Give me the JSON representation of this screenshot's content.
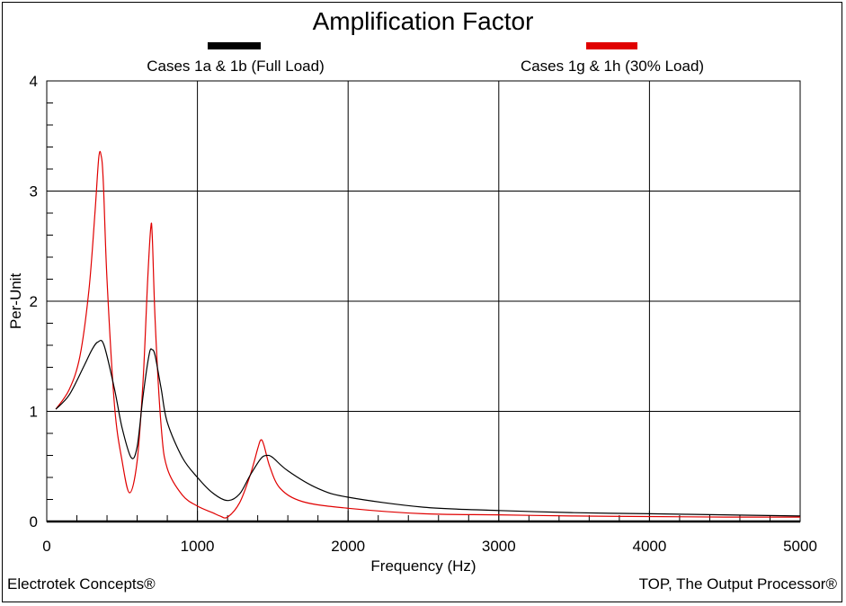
{
  "chart_data": {
    "type": "line",
    "title": "Amplification Factor",
    "xlabel": "Frequency (Hz)",
    "ylabel": "Per-Unit",
    "xlim": [
      0,
      5000
    ],
    "ylim": [
      0,
      4
    ],
    "x_ticks": [
      "0",
      "1000",
      "2000",
      "3000",
      "4000",
      "5000"
    ],
    "y_ticks": [
      "0",
      "1",
      "2",
      "3",
      "4"
    ],
    "grid": true,
    "legend_position": "top",
    "series": [
      {
        "name": "Cases 1a & 1b (Full Load)",
        "color": "#000000",
        "x": [
          60,
          150,
          250,
          300,
          340,
          380,
          450,
          500,
          560,
          600,
          640,
          680,
          700,
          720,
          760,
          800,
          900,
          1000,
          1100,
          1200,
          1280,
          1350,
          1420,
          1460,
          1500,
          1600,
          1800,
          2000,
          2500,
          3000,
          3500,
          4000,
          4500,
          5000
        ],
        "y": [
          1.02,
          1.15,
          1.42,
          1.56,
          1.63,
          1.6,
          1.2,
          0.85,
          0.58,
          0.68,
          1.15,
          1.52,
          1.56,
          1.5,
          1.2,
          0.9,
          0.58,
          0.4,
          0.26,
          0.19,
          0.25,
          0.42,
          0.57,
          0.6,
          0.58,
          0.46,
          0.3,
          0.22,
          0.13,
          0.1,
          0.08,
          0.07,
          0.06,
          0.05
        ]
      },
      {
        "name": "Cases 1g & 1h (30% Load)",
        "color": "#e00000",
        "x": [
          60,
          150,
          220,
          280,
          320,
          345,
          360,
          375,
          400,
          450,
          500,
          550,
          600,
          640,
          670,
          690,
          700,
          720,
          760,
          800,
          900,
          1000,
          1100,
          1150,
          1200,
          1280,
          1350,
          1400,
          1420,
          1440,
          1480,
          1550,
          1700,
          2000,
          2500,
          3000,
          3500,
          4000,
          4500,
          5000
        ],
        "y": [
          1.02,
          1.2,
          1.5,
          2.1,
          2.8,
          3.3,
          3.33,
          3.1,
          2.2,
          1.05,
          0.55,
          0.26,
          0.55,
          1.3,
          2.2,
          2.66,
          2.6,
          1.8,
          0.85,
          0.48,
          0.24,
          0.14,
          0.08,
          0.05,
          0.04,
          0.17,
          0.42,
          0.66,
          0.74,
          0.7,
          0.5,
          0.3,
          0.18,
          0.12,
          0.07,
          0.06,
          0.05,
          0.045,
          0.04,
          0.04
        ]
      }
    ]
  },
  "footer": {
    "left": "Electrotek Concepts®",
    "right": "TOP, The Output Processor®"
  }
}
